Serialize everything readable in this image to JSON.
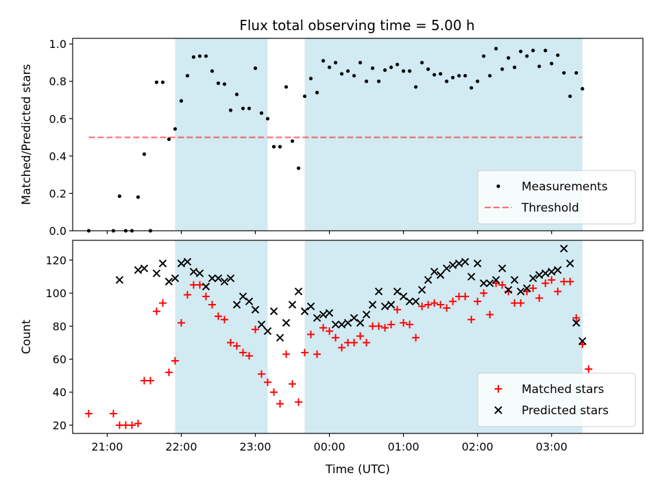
{
  "title": "Flux total observing time = 5.00 h",
  "chart_data": [
    {
      "type": "scatter",
      "panel": "top",
      "xlabel": "",
      "ylabel": "Matched/Predicted stars",
      "xlim": [
        "20:32",
        "04:14"
      ],
      "ylim": [
        0,
        1.03
      ],
      "yticks": [
        0,
        0.2,
        0.4,
        0.6,
        0.8,
        1.0
      ],
      "ytick_labels": [
        "0.0",
        "0.2",
        "0.4",
        "0.6",
        "0.8",
        "1.0"
      ],
      "grid": false,
      "legend_position": "lower-right",
      "shaded_intervals": [
        [
          "21:55",
          "23:10"
        ],
        [
          "23:40",
          "03:25"
        ]
      ],
      "shade_color": "#add8e6",
      "threshold": {
        "name": "Threshold",
        "y": 0.5,
        "x_from": "20:45",
        "x_to": "03:25",
        "color": "#ff0000"
      },
      "series": [
        {
          "name": "Measurements",
          "marker": "dot",
          "color": "#000000",
          "points": [
            [
              "20:45",
              0.0
            ],
            [
              "21:05",
              0.0
            ],
            [
              "21:10",
              0.185
            ],
            [
              "21:15",
              0.0
            ],
            [
              "21:20",
              0.0
            ],
            [
              "21:25",
              0.18
            ],
            [
              "21:30",
              0.41
            ],
            [
              "21:35",
              0.0
            ],
            [
              "21:40",
              0.795
            ],
            [
              "21:45",
              0.795
            ],
            [
              "21:50",
              0.49
            ],
            [
              "21:55",
              0.545
            ],
            [
              "22:00",
              0.695
            ],
            [
              "22:05",
              0.83
            ],
            [
              "22:10",
              0.93
            ],
            [
              "22:15",
              0.935
            ],
            [
              "22:20",
              0.935
            ],
            [
              "22:25",
              0.855
            ],
            [
              "22:30",
              0.79
            ],
            [
              "22:35",
              0.785
            ],
            [
              "22:40",
              0.645
            ],
            [
              "22:45",
              0.73
            ],
            [
              "22:50",
              0.655
            ],
            [
              "22:55",
              0.655
            ],
            [
              "23:00",
              0.87
            ],
            [
              "23:05",
              0.63
            ],
            [
              "23:10",
              0.6
            ],
            [
              "23:15",
              0.45
            ],
            [
              "23:20",
              0.45
            ],
            [
              "23:25",
              0.77
            ],
            [
              "23:30",
              0.48
            ],
            [
              "23:35",
              0.335
            ],
            [
              "23:40",
              0.72
            ],
            [
              "23:45",
              0.815
            ],
            [
              "23:50",
              0.74
            ],
            [
              "23:55",
              0.91
            ],
            [
              "00:00",
              0.875
            ],
            [
              "00:05",
              0.9
            ],
            [
              "00:10",
              0.84
            ],
            [
              "00:15",
              0.855
            ],
            [
              "00:20",
              0.83
            ],
            [
              "00:25",
              0.9
            ],
            [
              "00:30",
              0.8
            ],
            [
              "00:35",
              0.87
            ],
            [
              "00:40",
              0.8
            ],
            [
              "00:45",
              0.86
            ],
            [
              "00:50",
              0.875
            ],
            [
              "00:55",
              0.89
            ],
            [
              "01:00",
              0.855
            ],
            [
              "01:05",
              0.855
            ],
            [
              "01:10",
              0.77
            ],
            [
              "01:15",
              0.9
            ],
            [
              "01:20",
              0.865
            ],
            [
              "01:25",
              0.835
            ],
            [
              "01:30",
              0.84
            ],
            [
              "01:35",
              0.8
            ],
            [
              "01:40",
              0.82
            ],
            [
              "01:45",
              0.83
            ],
            [
              "01:50",
              0.83
            ],
            [
              "01:55",
              0.765
            ],
            [
              "02:00",
              0.8
            ],
            [
              "02:05",
              0.935
            ],
            [
              "02:10",
              0.83
            ],
            [
              "02:15",
              0.975
            ],
            [
              "02:20",
              0.865
            ],
            [
              "02:25",
              0.925
            ],
            [
              "02:30",
              0.875
            ],
            [
              "02:35",
              0.96
            ],
            [
              "02:40",
              0.935
            ],
            [
              "02:45",
              0.965
            ],
            [
              "02:50",
              0.88
            ],
            [
              "02:55",
              0.965
            ],
            [
              "03:00",
              0.895
            ],
            [
              "03:05",
              0.94
            ],
            [
              "03:10",
              0.845
            ],
            [
              "03:15",
              0.72
            ],
            [
              "03:20",
              0.845
            ],
            [
              "03:25",
              0.76
            ]
          ]
        }
      ]
    },
    {
      "type": "scatter",
      "panel": "bottom",
      "xlabel": "Time (UTC)",
      "ylabel": "Count",
      "xlim": [
        "20:32",
        "04:14"
      ],
      "ylim": [
        15,
        132
      ],
      "xticks": [
        "21:00",
        "22:00",
        "23:00",
        "00:00",
        "01:00",
        "02:00",
        "03:00"
      ],
      "xtick_labels": [
        "21:00",
        "22:00",
        "23:00",
        "00:00",
        "01:00",
        "02:00",
        "03:00"
      ],
      "yticks": [
        20,
        40,
        60,
        80,
        100,
        120
      ],
      "ytick_labels": [
        "20",
        "40",
        "60",
        "80",
        "100",
        "120"
      ],
      "grid": false,
      "legend_position": "lower-right",
      "shaded_intervals": [
        [
          "21:55",
          "23:10"
        ],
        [
          "23:40",
          "03:25"
        ]
      ],
      "shade_color": "#add8e6",
      "series": [
        {
          "name": "Matched stars",
          "marker": "plus",
          "color": "#ff0000",
          "points": [
            [
              "20:45",
              27
            ],
            [
              "21:05",
              27
            ],
            [
              "21:10",
              20
            ],
            [
              "21:15",
              20
            ],
            [
              "21:20",
              20
            ],
            [
              "21:25",
              21
            ],
            [
              "21:30",
              47
            ],
            [
              "21:35",
              47
            ],
            [
              "21:40",
              89
            ],
            [
              "21:45",
              94
            ],
            [
              "21:50",
              52
            ],
            [
              "21:55",
              59
            ],
            [
              "22:00",
              82
            ],
            [
              "22:05",
              99
            ],
            [
              "22:10",
              105
            ],
            [
              "22:15",
              105
            ],
            [
              "22:20",
              98
            ],
            [
              "22:25",
              93
            ],
            [
              "22:30",
              86
            ],
            [
              "22:35",
              84
            ],
            [
              "22:40",
              70
            ],
            [
              "22:45",
              68
            ],
            [
              "22:50",
              64
            ],
            [
              "22:55",
              62
            ],
            [
              "23:00",
              78
            ],
            [
              "23:05",
              51
            ],
            [
              "23:10",
              46
            ],
            [
              "23:15",
              40
            ],
            [
              "23:20",
              33
            ],
            [
              "23:25",
              63
            ],
            [
              "23:30",
              45
            ],
            [
              "23:35",
              34
            ],
            [
              "23:40",
              64
            ],
            [
              "23:45",
              75
            ],
            [
              "23:50",
              63
            ],
            [
              "23:55",
              79
            ],
            [
              "00:00",
              77
            ],
            [
              "00:05",
              73
            ],
            [
              "00:10",
              67
            ],
            [
              "00:15",
              70
            ],
            [
              "00:20",
              70
            ],
            [
              "00:25",
              74
            ],
            [
              "00:30",
              70
            ],
            [
              "00:35",
              80
            ],
            [
              "00:40",
              80
            ],
            [
              "00:45",
              79
            ],
            [
              "00:50",
              81
            ],
            [
              "00:55",
              90
            ],
            [
              "01:00",
              82
            ],
            [
              "01:05",
              81
            ],
            [
              "01:10",
              73
            ],
            [
              "01:15",
              92
            ],
            [
              "01:20",
              93
            ],
            [
              "01:25",
              94
            ],
            [
              "01:30",
              93
            ],
            [
              "01:35",
              91
            ],
            [
              "01:40",
              95
            ],
            [
              "01:45",
              98
            ],
            [
              "01:50",
              98
            ],
            [
              "01:55",
              84
            ],
            [
              "02:00",
              95
            ],
            [
              "02:05",
              100
            ],
            [
              "02:10",
              87
            ],
            [
              "02:15",
              106
            ],
            [
              "02:20",
              105
            ],
            [
              "02:25",
              101
            ],
            [
              "02:30",
              94
            ],
            [
              "02:35",
              94
            ],
            [
              "02:40",
              101
            ],
            [
              "02:45",
              103
            ],
            [
              "02:50",
              97
            ],
            [
              "02:55",
              106
            ],
            [
              "03:00",
              108
            ],
            [
              "03:05",
              101
            ],
            [
              "03:10",
              107
            ],
            [
              "03:15",
              107
            ],
            [
              "03:20",
              85
            ],
            [
              "03:25",
              69
            ],
            [
              "03:30",
              54
            ]
          ]
        },
        {
          "name": "Predicted stars",
          "marker": "x",
          "color": "#000000",
          "points": [
            [
              "21:10",
              108
            ],
            [
              "21:25",
              114
            ],
            [
              "21:30",
              115
            ],
            [
              "21:40",
              112
            ],
            [
              "21:45",
              118
            ],
            [
              "21:50",
              107
            ],
            [
              "21:55",
              109
            ],
            [
              "22:00",
              118
            ],
            [
              "22:05",
              119
            ],
            [
              "22:10",
              113
            ],
            [
              "22:15",
              112
            ],
            [
              "22:20",
              104
            ],
            [
              "22:25",
              109
            ],
            [
              "22:30",
              109
            ],
            [
              "22:35",
              107
            ],
            [
              "22:40",
              109
            ],
            [
              "22:45",
              93
            ],
            [
              "22:50",
              98
            ],
            [
              "22:55",
              95
            ],
            [
              "23:00",
              90
            ],
            [
              "23:05",
              81
            ],
            [
              "23:10",
              77
            ],
            [
              "23:15",
              89
            ],
            [
              "23:20",
              73
            ],
            [
              "23:25",
              82
            ],
            [
              "23:30",
              93
            ],
            [
              "23:35",
              101
            ],
            [
              "23:40",
              89
            ],
            [
              "23:45",
              92
            ],
            [
              "23:50",
              85
            ],
            [
              "23:55",
              87
            ],
            [
              "00:00",
              88
            ],
            [
              "00:05",
              81
            ],
            [
              "00:10",
              81
            ],
            [
              "00:15",
              82
            ],
            [
              "00:20",
              85
            ],
            [
              "00:25",
              82
            ],
            [
              "00:30",
              87
            ],
            [
              "00:35",
              93
            ],
            [
              "00:40",
              101
            ],
            [
              "00:45",
              92
            ],
            [
              "00:50",
              93
            ],
            [
              "00:55",
              101
            ],
            [
              "01:00",
              98
            ],
            [
              "01:05",
              95
            ],
            [
              "01:10",
              95
            ],
            [
              "01:15",
              102
            ],
            [
              "01:20",
              108
            ],
            [
              "01:25",
              113
            ],
            [
              "01:30",
              111
            ],
            [
              "01:35",
              115
            ],
            [
              "01:40",
              117
            ],
            [
              "01:45",
              118
            ],
            [
              "01:50",
              119
            ],
            [
              "01:55",
              110
            ],
            [
              "02:00",
              118
            ],
            [
              "02:05",
              106
            ],
            [
              "02:10",
              106
            ],
            [
              "02:15",
              108
            ],
            [
              "02:20",
              115
            ],
            [
              "02:25",
              102
            ],
            [
              "02:30",
              108
            ],
            [
              "02:35",
              101
            ],
            [
              "02:40",
              103
            ],
            [
              "02:45",
              109
            ],
            [
              "02:50",
              111
            ],
            [
              "02:55",
              112
            ],
            [
              "03:00",
              113
            ],
            [
              "03:05",
              114
            ],
            [
              "03:10",
              127
            ],
            [
              "03:15",
              118
            ],
            [
              "03:20",
              82
            ],
            [
              "03:25",
              71
            ]
          ]
        }
      ]
    }
  ]
}
